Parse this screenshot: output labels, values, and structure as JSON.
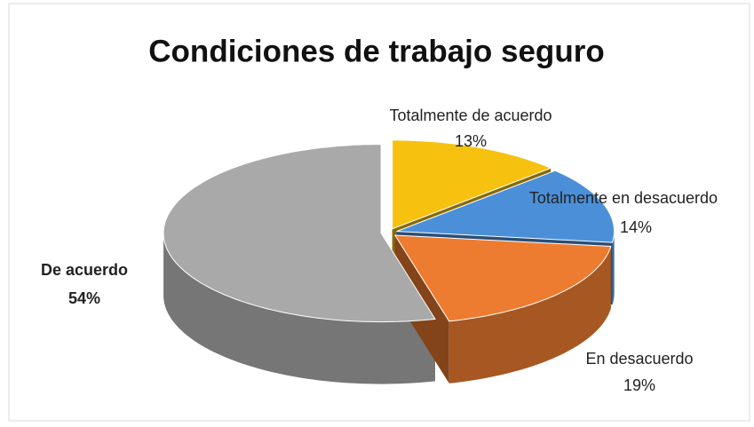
{
  "chart_data": {
    "type": "pie3d",
    "title": "Condiciones de trabajo seguro",
    "categories": [
      "Totalmente de acuerdo",
      "Totalmente en desacuerdo",
      "En desacuerdo",
      "De acuerdo"
    ],
    "values": [
      13,
      14,
      19,
      54
    ],
    "value_labels": [
      "13%",
      "14%",
      "19%",
      "54%"
    ],
    "colors": [
      "#f7c10f",
      "#4b8fd8",
      "#ee7c30",
      "#a9a9a9"
    ]
  }
}
